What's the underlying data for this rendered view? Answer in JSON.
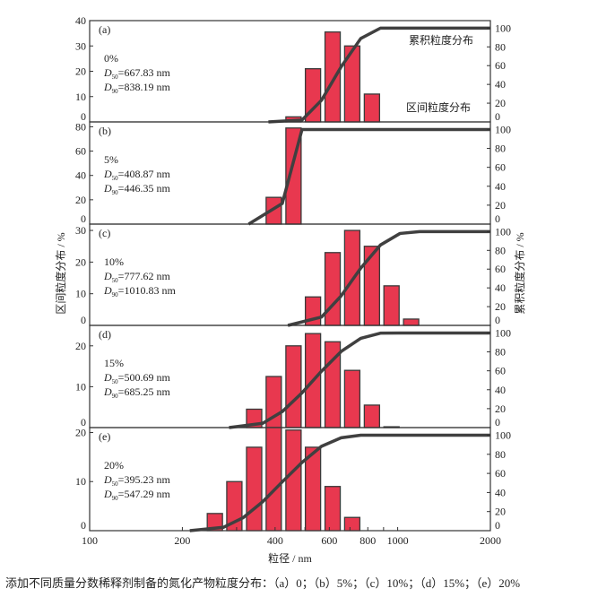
{
  "chart_data": {
    "type": "bar",
    "xscale": "log",
    "xlabel": "粒径 / nm",
    "ylabel_left": "区间粒度分布 / %",
    "ylabel_right": "累积粒度分布 / %",
    "xlim": [
      100,
      2000
    ],
    "xticks": [
      100,
      200,
      400,
      600,
      800,
      1000,
      2000
    ],
    "right_ylim": [
      0,
      108
    ],
    "right_yticks": [
      0,
      20,
      40,
      60,
      80,
      100
    ],
    "bin_centers": [
      255,
      295,
      342,
      396,
      459,
      531,
      615,
      712,
      825,
      955,
      1106
    ],
    "legend": {
      "cumulative": "累积粒度分布",
      "interval": "区间粒度分布"
    },
    "panels": [
      {
        "id": "(a)",
        "content": "0%",
        "d50": "667.83 nm",
        "d90": "838.19 nm",
        "ylim": [
          0,
          40
        ],
        "yticks": [
          0,
          10,
          20,
          30,
          40
        ],
        "values": [
          0,
          0,
          0,
          0,
          2,
          21,
          35.5,
          30,
          11,
          0,
          0
        ]
      },
      {
        "id": "(b)",
        "content": "5%",
        "d50": "408.87 nm",
        "d90": "446.35 nm",
        "ylim": [
          0,
          84
        ],
        "yticks": [
          0,
          20,
          40,
          60,
          80
        ],
        "values": [
          0,
          0,
          0,
          22,
          79,
          0,
          0,
          0,
          0,
          0,
          0
        ]
      },
      {
        "id": "(c)",
        "content": "10%",
        "d50": "777.62 nm",
        "d90": "1010.83 nm",
        "ylim": [
          0,
          32
        ],
        "yticks": [
          0,
          10,
          20,
          30
        ],
        "values": [
          0,
          0,
          0,
          0,
          0,
          9,
          23,
          30,
          25,
          12.5,
          2
        ]
      },
      {
        "id": "(d)",
        "content": "15%",
        "d50": "500.69 nm",
        "d90": "685.25 nm",
        "ylim": [
          0,
          25
        ],
        "yticks": [
          0,
          10,
          20
        ],
        "values": [
          0,
          0,
          4.5,
          12.5,
          20,
          23,
          21,
          14,
          5.5,
          0.2,
          0
        ]
      },
      {
        "id": "(e)",
        "content": "20%",
        "d50": "395.23 nm",
        "d90": "547.29 nm",
        "ylim": [
          0,
          21
        ],
        "yticks": [
          0,
          10,
          20
        ],
        "values": [
          3.5,
          10,
          17,
          21,
          20.5,
          17,
          9,
          2.7,
          0,
          0,
          0
        ]
      }
    ],
    "colors": {
      "bar": "#e8384f",
      "bar_edge": "#3a3a3a",
      "curve": "#404040"
    }
  },
  "caption": "添加不同质量分数稀释剂制备的氮化产物粒度分布：（a）0；（b）5%；（c）10%；（d）15%；（e）20%"
}
